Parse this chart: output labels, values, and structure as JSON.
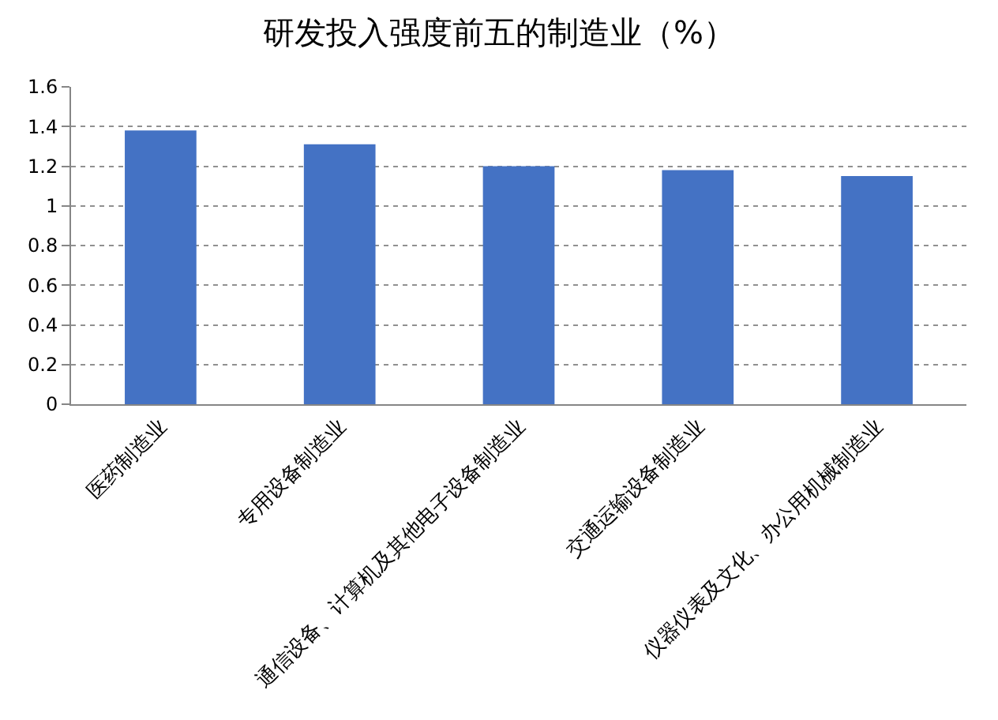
{
  "chart_data": {
    "type": "bar",
    "title": "研发投入强度前五的制造业（%）",
    "categories": [
      "医药制造业",
      "专用设备制造业",
      "通信设备、计算机及其他电子设备制造业",
      "交通运输设备制造业",
      "仪器仪表及文化、办公用机械制造业"
    ],
    "values": [
      1.38,
      1.31,
      1.2,
      1.18,
      1.15
    ],
    "color": "#4472c4",
    "ylim": [
      0,
      1.6
    ],
    "yticks": [
      0,
      0.2,
      0.4,
      0.6,
      0.8,
      1,
      1.2,
      1.4,
      1.6
    ],
    "grid": "y"
  }
}
